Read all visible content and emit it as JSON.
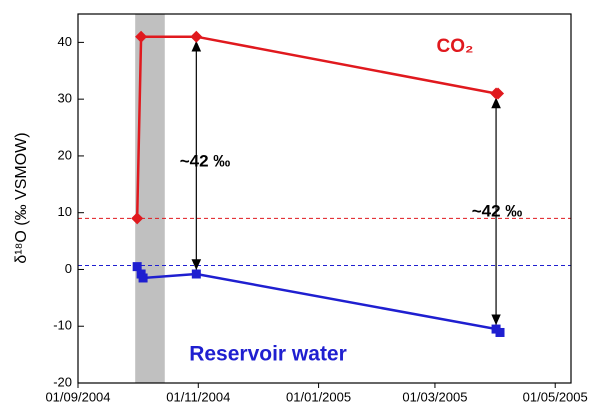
{
  "chart_data": {
    "type": "line",
    "ylabel": "δ¹⁸O (‰ VSMOW)",
    "xlim": [
      "2004-09-01",
      "2005-05-09"
    ],
    "xticks": [
      {
        "value": "2004-09-01",
        "label": "01/09/2004"
      },
      {
        "value": "2004-11-01",
        "label": "01/11/2004"
      },
      {
        "value": "2005-01-01",
        "label": "01/01/2005"
      },
      {
        "value": "2005-03-01",
        "label": "01/03/2005"
      },
      {
        "value": "2005-05-01",
        "label": "01/05/2005"
      }
    ],
    "ylim": [
      -20,
      45
    ],
    "yticks": [
      -20,
      -10,
      0,
      10,
      20,
      30,
      40
    ],
    "shaded_region": [
      "2004-09-30",
      "2004-10-15"
    ],
    "series": [
      {
        "name": "CO₂",
        "color": "#e0191e",
        "marker": "diamond",
        "x": [
          "2004-10-01",
          "2004-10-03",
          "2004-10-31",
          "2005-04-01",
          "2005-04-02"
        ],
        "values": [
          9,
          41,
          41,
          31,
          31
        ]
      },
      {
        "name": "Reservoir water",
        "color": "#1f1fd0",
        "marker": "square",
        "x": [
          "2004-10-01",
          "2004-10-03",
          "2004-10-04",
          "2004-10-31",
          "2005-04-01",
          "2005-04-03"
        ],
        "values": [
          0.5,
          -0.8,
          -1.5,
          -0.8,
          -10.5,
          -11.1
        ]
      }
    ],
    "reference_lines": [
      {
        "value": 9,
        "color": "#e0191e"
      },
      {
        "value": 0.7,
        "color": "#1f1fd0"
      }
    ],
    "annotations": [
      "~42 ‰",
      "~42 ‰"
    ]
  }
}
